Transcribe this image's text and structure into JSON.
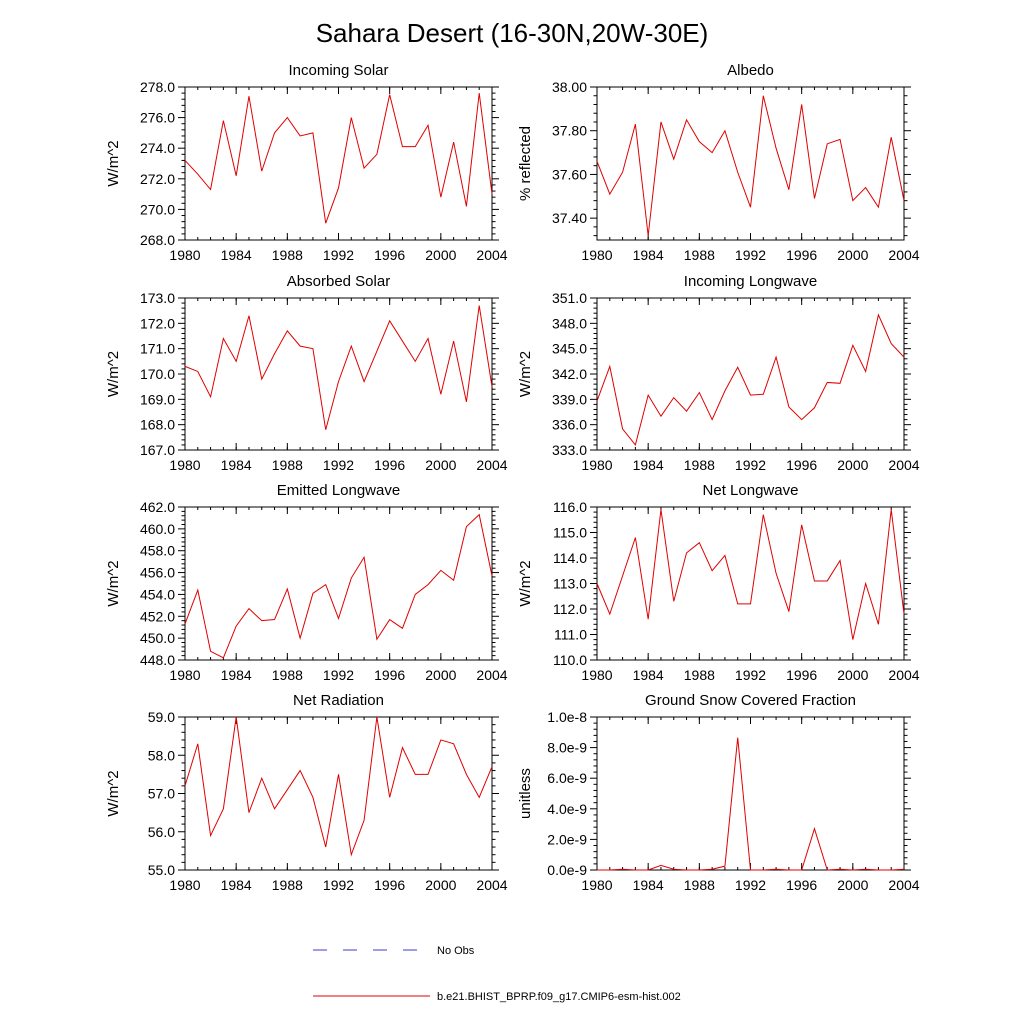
{
  "figure": {
    "title": "Sahara Desert (16-30N,20W-30E)",
    "series_color": "#e00000",
    "obs_color": "#3b3bcc"
  },
  "legend": {
    "obs_label": "No Obs",
    "model_label": "b.e21.BHIST_BPRP.f09_g17.CMIP6-esm-hist.002"
  },
  "chart_data": [
    {
      "type": "line",
      "title": "Incoming Solar",
      "ylabel": "W/m^2",
      "xlabel": "",
      "xlim": [
        1980,
        2004
      ],
      "ylim": [
        268,
        278
      ],
      "yticks": [
        268,
        270,
        272,
        274,
        276,
        278
      ],
      "ytick_labels": [
        "268.0",
        "270.0",
        "272.0",
        "274.0",
        "276.0",
        "278.0"
      ],
      "xticks": [
        1980,
        1984,
        1988,
        1992,
        1996,
        2000,
        2004
      ],
      "xtick_labels": [
        "1980",
        "1984",
        "1988",
        "1992",
        "1996",
        "2000",
        "2004"
      ],
      "x": [
        1980,
        1981,
        1982,
        1983,
        1984,
        1985,
        1986,
        1987,
        1988,
        1989,
        1990,
        1991,
        1992,
        1993,
        1994,
        1995,
        1996,
        1997,
        1998,
        1999,
        2000,
        2001,
        2002,
        2003,
        2004
      ],
      "values": [
        273.2,
        272.3,
        271.3,
        275.8,
        272.2,
        277.4,
        272.5,
        275.0,
        276.0,
        274.8,
        275.0,
        269.1,
        271.4,
        276.0,
        272.7,
        273.6,
        277.5,
        274.1,
        274.1,
        275.5,
        270.8,
        274.4,
        270.2,
        277.6,
        271.0
      ]
    },
    {
      "type": "line",
      "title": "Albedo",
      "ylabel": "% reflected",
      "xlabel": "",
      "xlim": [
        1980,
        2004
      ],
      "ylim": [
        37.3,
        38.0
      ],
      "yticks": [
        37.4,
        37.6,
        37.8,
        38.0
      ],
      "ytick_labels": [
        "37.40",
        "37.60",
        "37.80",
        "38.00"
      ],
      "xticks": [
        1980,
        1984,
        1988,
        1992,
        1996,
        2000,
        2004
      ],
      "xtick_labels": [
        "1980",
        "1984",
        "1988",
        "1992",
        "1996",
        "2000",
        "2004"
      ],
      "x": [
        1980,
        1981,
        1982,
        1983,
        1984,
        1985,
        1986,
        1987,
        1988,
        1989,
        1990,
        1991,
        1992,
        1993,
        1994,
        1995,
        1996,
        1997,
        1998,
        1999,
        2000,
        2001,
        2002,
        2003,
        2004
      ],
      "values": [
        37.66,
        37.51,
        37.61,
        37.83,
        37.32,
        37.84,
        37.67,
        37.85,
        37.75,
        37.7,
        37.8,
        37.61,
        37.45,
        37.96,
        37.72,
        37.53,
        37.92,
        37.49,
        37.74,
        37.76,
        37.48,
        37.54,
        37.45,
        37.77,
        37.48
      ]
    },
    {
      "type": "line",
      "title": "Absorbed Solar",
      "ylabel": "W/m^2",
      "xlabel": "",
      "xlim": [
        1980,
        2004
      ],
      "ylim": [
        167,
        173
      ],
      "yticks": [
        167,
        168,
        169,
        170,
        171,
        172,
        173
      ],
      "ytick_labels": [
        "167.0",
        "168.0",
        "169.0",
        "170.0",
        "171.0",
        "172.0",
        "173.0"
      ],
      "xticks": [
        1980,
        1984,
        1988,
        1992,
        1996,
        2000,
        2004
      ],
      "xtick_labels": [
        "1980",
        "1984",
        "1988",
        "1992",
        "1996",
        "2000",
        "2004"
      ],
      "x": [
        1980,
        1981,
        1982,
        1983,
        1984,
        1985,
        1986,
        1987,
        1988,
        1989,
        1990,
        1991,
        1992,
        1993,
        1994,
        1995,
        1996,
        1997,
        1998,
        1999,
        2000,
        2001,
        2002,
        2003,
        2004
      ],
      "values": [
        170.3,
        170.1,
        169.1,
        171.4,
        170.5,
        172.3,
        169.8,
        170.8,
        171.7,
        171.1,
        171.0,
        167.8,
        169.7,
        171.1,
        169.7,
        170.9,
        172.1,
        171.3,
        170.5,
        171.4,
        169.2,
        171.3,
        168.9,
        172.7,
        169.5
      ]
    },
    {
      "type": "line",
      "title": "Incoming Longwave",
      "ylabel": "W/m^2",
      "xlabel": "",
      "xlim": [
        1980,
        2004
      ],
      "ylim": [
        333,
        351
      ],
      "yticks": [
        333,
        336,
        339,
        342,
        345,
        348,
        351
      ],
      "ytick_labels": [
        "333.0",
        "336.0",
        "339.0",
        "342.0",
        "345.0",
        "348.0",
        "351.0"
      ],
      "xticks": [
        1980,
        1984,
        1988,
        1992,
        1996,
        2000,
        2004
      ],
      "xtick_labels": [
        "1980",
        "1984",
        "1988",
        "1992",
        "1996",
        "2000",
        "2004"
      ],
      "x": [
        1980,
        1981,
        1982,
        1983,
        1984,
        1985,
        1986,
        1987,
        1988,
        1989,
        1990,
        1991,
        1992,
        1993,
        1994,
        1995,
        1996,
        1997,
        1998,
        1999,
        2000,
        2001,
        2002,
        2003,
        2004
      ],
      "values": [
        338.8,
        342.9,
        335.5,
        333.6,
        339.5,
        337.0,
        339.2,
        337.6,
        339.8,
        336.6,
        340.0,
        342.8,
        339.5,
        339.6,
        344.0,
        338.1,
        336.6,
        338.0,
        341.0,
        340.9,
        345.4,
        342.3,
        349.0,
        345.6,
        344.0
      ]
    },
    {
      "type": "line",
      "title": "Emitted Longwave",
      "ylabel": "W/m^2",
      "xlabel": "",
      "xlim": [
        1980,
        2004
      ],
      "ylim": [
        448,
        462
      ],
      "yticks": [
        448,
        450,
        452,
        454,
        456,
        458,
        460,
        462
      ],
      "ytick_labels": [
        "448.0",
        "450.0",
        "452.0",
        "454.0",
        "456.0",
        "458.0",
        "460.0",
        "462.0"
      ],
      "xticks": [
        1980,
        1984,
        1988,
        1992,
        1996,
        2000,
        2004
      ],
      "xtick_labels": [
        "1980",
        "1984",
        "1988",
        "1992",
        "1996",
        "2000",
        "2004"
      ],
      "x": [
        1980,
        1981,
        1982,
        1983,
        1984,
        1985,
        1986,
        1987,
        1988,
        1989,
        1990,
        1991,
        1992,
        1993,
        1994,
        1995,
        1996,
        1997,
        1998,
        1999,
        2000,
        2001,
        2002,
        2003,
        2004
      ],
      "values": [
        451.3,
        454.4,
        448.8,
        448.2,
        451.1,
        452.7,
        451.6,
        451.7,
        454.5,
        450.0,
        454.1,
        454.9,
        451.8,
        455.5,
        457.4,
        449.9,
        451.7,
        450.9,
        454.0,
        454.9,
        456.2,
        455.3,
        460.2,
        461.3,
        455.7
      ]
    },
    {
      "type": "line",
      "title": "Net Longwave",
      "ylabel": "W/m^2",
      "xlabel": "",
      "xlim": [
        1980,
        2004
      ],
      "ylim": [
        110,
        116
      ],
      "yticks": [
        110,
        111,
        112,
        113,
        114,
        115,
        116
      ],
      "ytick_labels": [
        "110.0",
        "111.0",
        "112.0",
        "113.0",
        "114.0",
        "115.0",
        "116.0"
      ],
      "xticks": [
        1980,
        1984,
        1988,
        1992,
        1996,
        2000,
        2004
      ],
      "xtick_labels": [
        "1980",
        "1984",
        "1988",
        "1992",
        "1996",
        "2000",
        "2004"
      ],
      "x": [
        1980,
        1981,
        1982,
        1983,
        1984,
        1985,
        1986,
        1987,
        1988,
        1989,
        1990,
        1991,
        1992,
        1993,
        1994,
        1995,
        1996,
        1997,
        1998,
        1999,
        2000,
        2001,
        2002,
        2003,
        2004
      ],
      "values": [
        113.0,
        111.8,
        113.3,
        114.8,
        111.6,
        115.9,
        112.3,
        114.2,
        114.6,
        113.5,
        114.1,
        112.2,
        112.2,
        115.7,
        113.4,
        111.9,
        115.3,
        113.1,
        113.1,
        113.9,
        110.8,
        113.0,
        111.4,
        115.9,
        111.8
      ]
    },
    {
      "type": "line",
      "title": "Net Radiation",
      "ylabel": "W/m^2",
      "xlabel": "",
      "xlim": [
        1980,
        2004
      ],
      "ylim": [
        55,
        59
      ],
      "yticks": [
        55,
        56,
        57,
        58,
        59
      ],
      "ytick_labels": [
        "55.0",
        "56.0",
        "57.0",
        "58.0",
        "59.0"
      ],
      "xticks": [
        1980,
        1984,
        1988,
        1992,
        1996,
        2000,
        2004
      ],
      "xtick_labels": [
        "1980",
        "1984",
        "1988",
        "1992",
        "1996",
        "2000",
        "2004"
      ],
      "x": [
        1980,
        1981,
        1982,
        1983,
        1984,
        1985,
        1986,
        1987,
        1988,
        1989,
        1990,
        1991,
        1992,
        1993,
        1994,
        1995,
        1996,
        1997,
        1998,
        1999,
        2000,
        2001,
        2002,
        2003,
        2004
      ],
      "values": [
        57.2,
        58.3,
        55.9,
        56.6,
        59.0,
        56.5,
        57.4,
        56.6,
        57.1,
        57.6,
        56.9,
        55.6,
        57.5,
        55.4,
        56.3,
        59.0,
        56.9,
        58.2,
        57.5,
        57.5,
        58.4,
        58.3,
        57.5,
        56.9,
        57.7
      ]
    },
    {
      "type": "line",
      "title": "Ground Snow Covered Fraction",
      "ylabel": "unitless",
      "xlabel": "",
      "xlim": [
        1980,
        2004
      ],
      "ylim": [
        0,
        1e-08
      ],
      "yticks": [
        0,
        2e-09,
        4e-09,
        6e-09,
        8e-09,
        1e-08
      ],
      "ytick_labels": [
        "0.0e-9",
        "2.0e-9",
        "4.0e-9",
        "6.0e-9",
        "8.0e-9",
        "1.0e-8"
      ],
      "xticks": [
        1980,
        1984,
        1988,
        1992,
        1996,
        2000,
        2004
      ],
      "xtick_labels": [
        "1980",
        "1984",
        "1988",
        "1992",
        "1996",
        "2000",
        "2004"
      ],
      "x": [
        1980,
        1981,
        1982,
        1983,
        1984,
        1985,
        1986,
        1987,
        1988,
        1989,
        1990,
        1991,
        1992,
        1993,
        1994,
        1995,
        1996,
        1997,
        1998,
        1999,
        2000,
        2001,
        2002,
        2003,
        2004
      ],
      "values": [
        0,
        0,
        5e-11,
        0,
        0,
        3e-10,
        5e-11,
        0,
        0,
        5e-11,
        2.5e-10,
        8.65e-09,
        0,
        0,
        5e-11,
        0,
        0,
        2.7e-09,
        0,
        5e-11,
        0,
        5e-11,
        0,
        0,
        5e-11
      ]
    }
  ]
}
